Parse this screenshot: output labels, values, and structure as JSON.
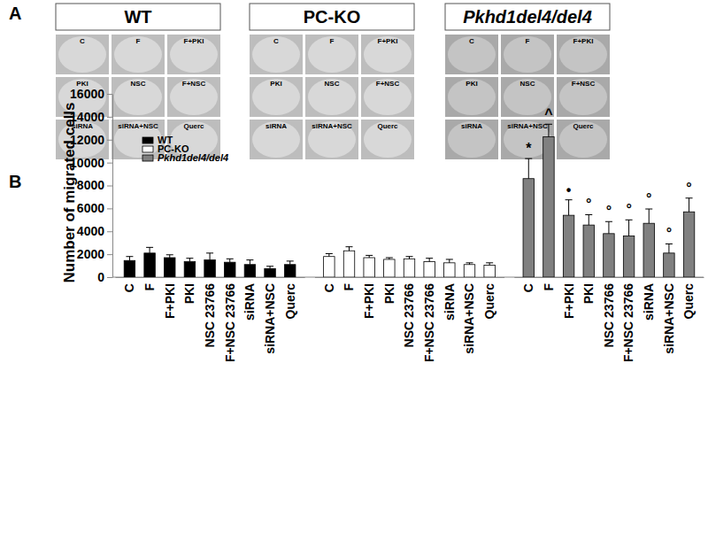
{
  "panel_a": {
    "label": "A",
    "groups": [
      {
        "title": "WT",
        "images": [
          "C",
          "F",
          "F+PKI",
          "PKI",
          "NSC",
          "F+NSC",
          "siRNA",
          "siRNA+NSC",
          "Querc"
        ]
      },
      {
        "title": "PC-KO",
        "images": [
          "C",
          "F",
          "F+PKI",
          "PKI",
          "NSC",
          "F+NSC",
          "siRNA",
          "siRNA+NSC",
          "Querc"
        ]
      },
      {
        "title": "Pkhd1del4/del4",
        "images": [
          "C",
          "F",
          "F+PKI",
          "PKI",
          "NSC",
          "F+NSC",
          "siRNA",
          "siRNA+NSC",
          "Querc"
        ]
      }
    ]
  },
  "chart_data": {
    "type": "bar",
    "panel_label": "B",
    "y_label": "Number of migrated cells",
    "categories": [
      "C",
      "F",
      "F+PKI",
      "PKI",
      "NSC 23766",
      "F+NSC 23766",
      "siRNA",
      "siRNA+NSC",
      "Querc"
    ],
    "series": [
      {
        "name": "WT",
        "color": "#000000",
        "values": [
          1450,
          2100,
          1700,
          1350,
          1500,
          1300,
          1100,
          750,
          1100
        ],
        "errors": [
          350,
          500,
          250,
          300,
          600,
          300,
          400,
          200,
          300
        ]
      },
      {
        "name": "PC-KO",
        "color": "#ffffff",
        "values": [
          1800,
          2300,
          1700,
          1550,
          1600,
          1350,
          1250,
          1100,
          1050
        ],
        "errors": [
          250,
          350,
          200,
          150,
          200,
          300,
          300,
          150,
          200
        ]
      },
      {
        "name": "Pkhd1del4/del4",
        "color": "#808080",
        "values": [
          8600,
          12250,
          5400,
          4550,
          3800,
          3600,
          4700,
          2100,
          5700
        ],
        "errors": [
          1750,
          1100,
          1350,
          900,
          1050,
          1400,
          1250,
          800,
          1200
        ],
        "annotations": [
          "*",
          "^",
          "•",
          "°",
          "°",
          "°",
          "°",
          "°",
          "°"
        ]
      }
    ],
    "ylim": [
      0,
      16000
    ],
    "yticks": [
      0,
      2000,
      4000,
      6000,
      8000,
      10000,
      12000,
      14000,
      16000
    ],
    "legend": "top-left"
  }
}
